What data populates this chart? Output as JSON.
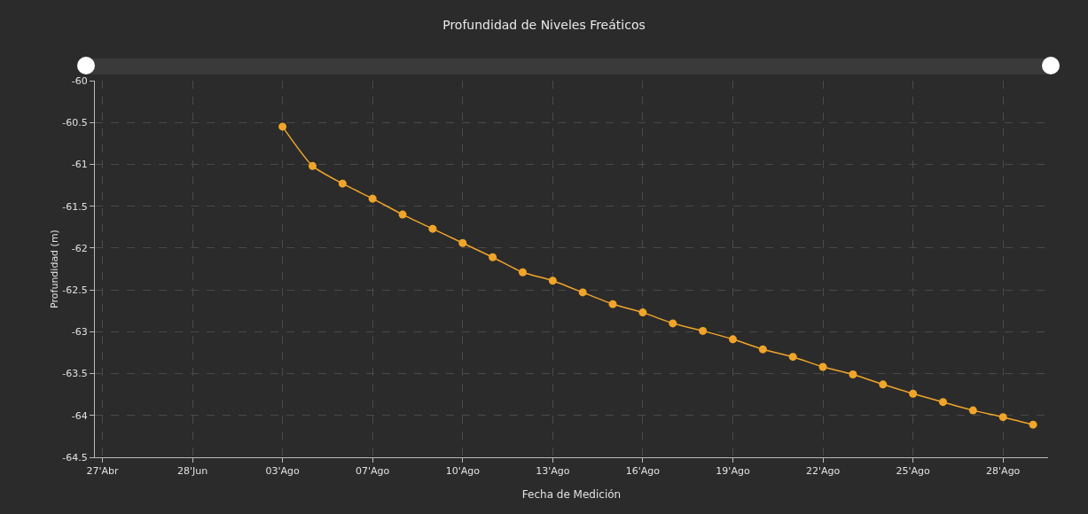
{
  "chart_data": {
    "type": "line",
    "title": "Profundidad de Niveles Freáticos",
    "xlabel": "Fecha de Medición",
    "ylabel": "Profundidad (m)",
    "categories": [
      "27'Abr",
      null,
      null,
      "28'Jun",
      null,
      null,
      "03'Ago",
      null,
      null,
      "07'Ago",
      null,
      null,
      "10'Ago",
      null,
      null,
      "13'Ago",
      null,
      null,
      "16'Ago",
      null,
      null,
      "19'Ago",
      null,
      null,
      "22'Ago",
      null,
      null,
      "25'Ago",
      null,
      null,
      "28'Ago",
      null
    ],
    "series": [
      {
        "color": "#f0a52a",
        "values": [
          null,
          null,
          null,
          null,
          null,
          null,
          -60.55,
          -61.02,
          -61.23,
          -61.41,
          -61.6,
          -61.77,
          -61.94,
          -62.11,
          -62.29,
          -62.39,
          -62.53,
          -62.67,
          -62.77,
          -62.9,
          -62.99,
          -63.09,
          -63.21,
          -63.3,
          -63.42,
          -63.51,
          -63.63,
          -63.74,
          -63.84,
          -63.94,
          -64.02,
          -64.11
        ]
      }
    ],
    "ylim": [
      -64.5,
      -60
    ],
    "yticks": [
      -64.5,
      -64,
      -63.5,
      -63,
      -62.5,
      -62,
      -61.5,
      -61,
      -60.5,
      -60
    ],
    "grid": true,
    "marker": "circle",
    "line_style": "solid"
  }
}
